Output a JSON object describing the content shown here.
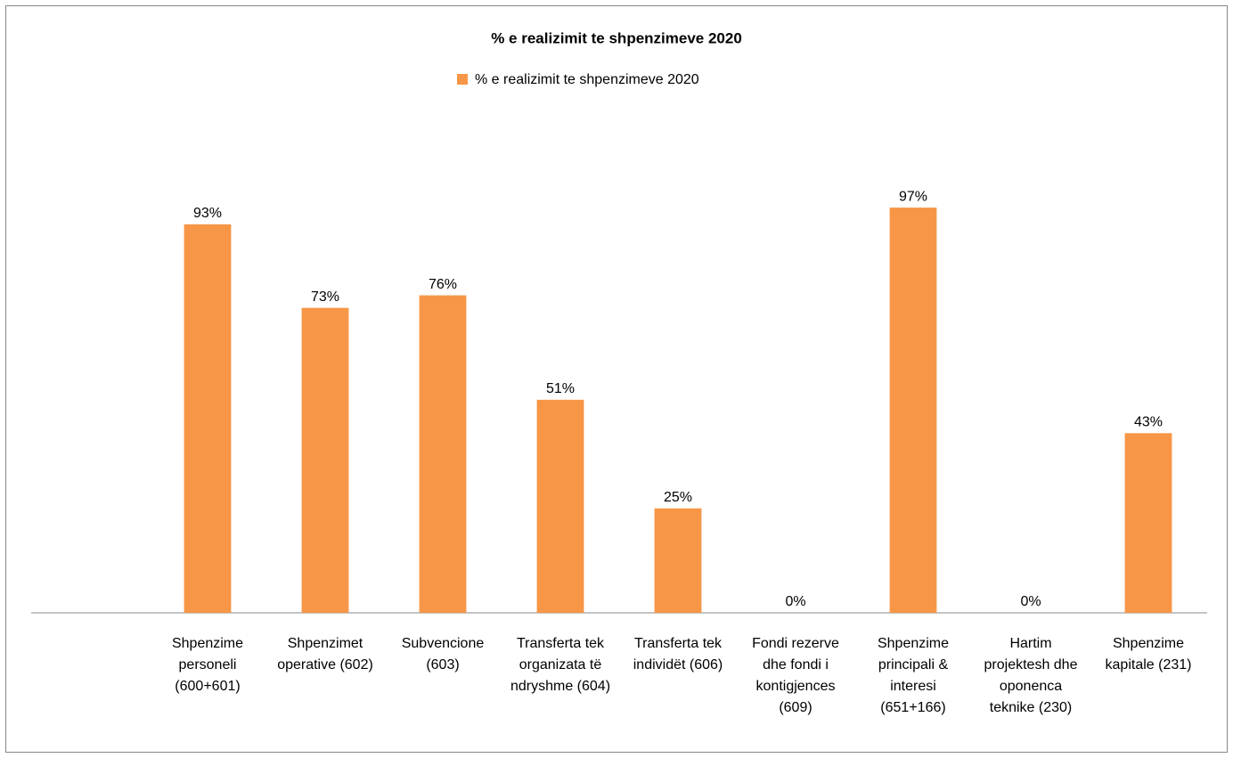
{
  "chart_data": {
    "type": "bar",
    "title": "% e realizimit te shpenzimeve  2020",
    "categories": [
      null,
      "Shpenzime personeli (600+601)",
      "Shpenzimet operative (602)",
      "Subvencione (603)",
      "Transferta tek organizata të ndryshme (604)",
      "Transferta tek individët (606)",
      "Fondi rezerve dhe fondi i kontigjences (609)",
      "Shpenzime principali & interesi (651+166)",
      "Hartim projektesh dhe oponenca teknike (230)",
      "Shpenzime kapitale (231)"
    ],
    "series": [
      {
        "name": "% e realizimit te shpenzimeve  2020",
        "color": "#f79646",
        "values": [
          null,
          93,
          73,
          76,
          51,
          25,
          0,
          97,
          0,
          43
        ],
        "value_labels": [
          null,
          "93%",
          "73%",
          "76%",
          "51%",
          "25%",
          "0%",
          "97%",
          "0%",
          "43%"
        ]
      }
    ],
    "ylim": [
      0,
      100
    ],
    "legend": "top"
  }
}
